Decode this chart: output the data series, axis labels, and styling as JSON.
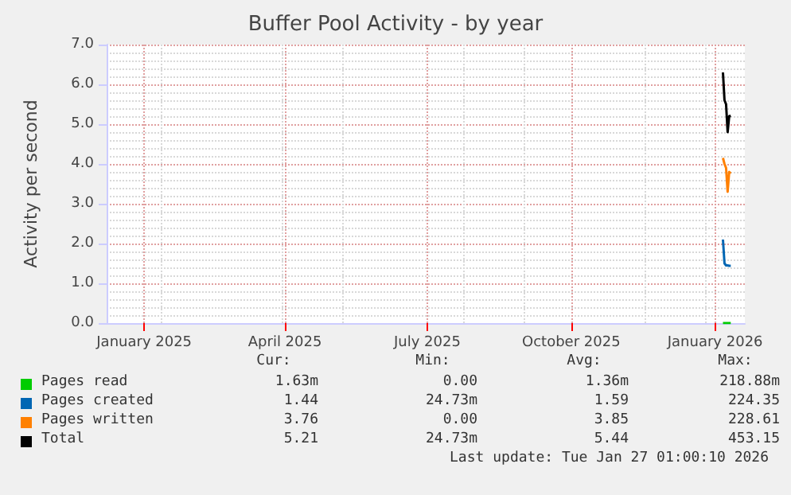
{
  "chart_data": {
    "type": "line",
    "title": "Buffer Pool Activity - by year",
    "ylabel": "Activity per second",
    "x": [
      "2026-01-06",
      "2026-01-07",
      "2026-01-08",
      "2026-01-09",
      "2026-01-10",
      "2026-01-11"
    ],
    "xlim": [
      "2024-12-08",
      "2026-01-20"
    ],
    "xticks": [
      {
        "value": "2025-01-01",
        "label": "January 2025"
      },
      {
        "value": "2025-04-01",
        "label": "April 2025"
      },
      {
        "value": "2025-07-01",
        "label": "July 2025"
      },
      {
        "value": "2025-10-01",
        "label": "October 2025"
      },
      {
        "value": "2026-01-01",
        "label": "January 2026"
      }
    ],
    "ylim": [
      0,
      7
    ],
    "yticks": [
      {
        "value": 0,
        "label": "0.0"
      },
      {
        "value": 1,
        "label": "1.0"
      },
      {
        "value": 2,
        "label": "2.0"
      },
      {
        "value": 3,
        "label": "3.0"
      },
      {
        "value": 4,
        "label": "4.0"
      },
      {
        "value": 5,
        "label": "5.0"
      },
      {
        "value": 6,
        "label": "6.0"
      },
      {
        "value": 7,
        "label": "7.0"
      }
    ],
    "grid": true,
    "legend": "bottom",
    "series": [
      {
        "name": "Pages read",
        "color": "#00cc00",
        "values": [
          0,
          0,
          0,
          0,
          0,
          0
        ]
      },
      {
        "name": "Pages created",
        "color": "#0066b3",
        "values": [
          2.1,
          1.5,
          1.45,
          1.45,
          1.44,
          1.44
        ]
      },
      {
        "name": "Pages written",
        "color": "#ff8000",
        "values": [
          4.15,
          4.0,
          3.9,
          3.3,
          3.8,
          3.76
        ]
      },
      {
        "name": "Total",
        "color": "#000000",
        "values": [
          6.3,
          5.6,
          5.5,
          4.8,
          5.2,
          5.21
        ]
      }
    ],
    "annotations": [
      "Cur:",
      "Min:",
      "Avg:",
      "Max:",
      "1.63m",
      "0.00",
      "1.36m",
      "218.88m",
      "1.44",
      "24.73m",
      "1.59",
      "224.35",
      "3.76",
      "0.00",
      "3.85",
      "228.61",
      "5.21",
      "24.73m",
      "5.44",
      "453.15",
      "Last update: Tue Jan 27 01:00:10 2026"
    ]
  }
}
